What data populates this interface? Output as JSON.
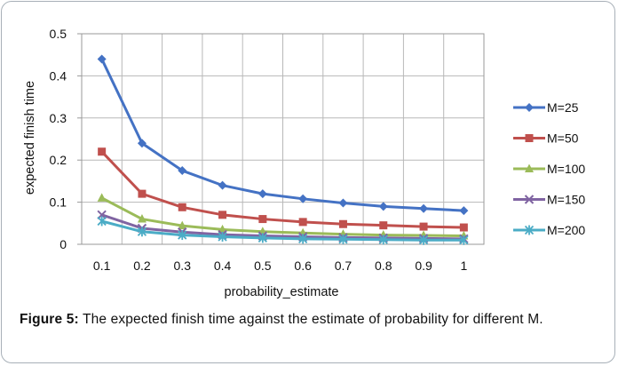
{
  "chart_data": {
    "type": "line",
    "xlabel": "probability_estimate",
    "ylabel": "expected finish time",
    "x": [
      0.1,
      0.2,
      0.3,
      0.4,
      0.5,
      0.6,
      0.7,
      0.8,
      0.9,
      1
    ],
    "x_tick_labels": [
      "0.1",
      "0.2",
      "0.3",
      "0.4",
      "0.5",
      "0.6",
      "0.7",
      "0.8",
      "0.9",
      "1"
    ],
    "y_tick_labels": [
      "0",
      "0.1",
      "0.2",
      "0.3",
      "0.4",
      "0.5"
    ],
    "ylim": [
      0,
      0.5
    ],
    "grid": true,
    "legend_position": "right",
    "series": [
      {
        "name": "M=25",
        "color": "#4472C4",
        "marker": "diamond",
        "values": [
          0.44,
          0.24,
          0.175,
          0.14,
          0.12,
          0.108,
          0.098,
          0.09,
          0.085,
          0.08
        ]
      },
      {
        "name": "M=50",
        "color": "#C0504D",
        "marker": "square",
        "values": [
          0.22,
          0.12,
          0.088,
          0.07,
          0.06,
          0.053,
          0.048,
          0.045,
          0.042,
          0.04
        ]
      },
      {
        "name": "M=100",
        "color": "#9BBB59",
        "marker": "triangle",
        "values": [
          0.11,
          0.06,
          0.044,
          0.035,
          0.03,
          0.027,
          0.024,
          0.022,
          0.021,
          0.02
        ]
      },
      {
        "name": "M=150",
        "color": "#8064A2",
        "marker": "x",
        "values": [
          0.07,
          0.038,
          0.029,
          0.023,
          0.02,
          0.018,
          0.016,
          0.015,
          0.014,
          0.013
        ]
      },
      {
        "name": "M=200",
        "color": "#4BACC6",
        "marker": "asterisk",
        "values": [
          0.055,
          0.03,
          0.022,
          0.018,
          0.015,
          0.013,
          0.012,
          0.011,
          0.01,
          0.01
        ]
      }
    ]
  },
  "caption": {
    "label": "Figure 5:",
    "text": " The expected finish time against the estimate of probability for different M."
  }
}
